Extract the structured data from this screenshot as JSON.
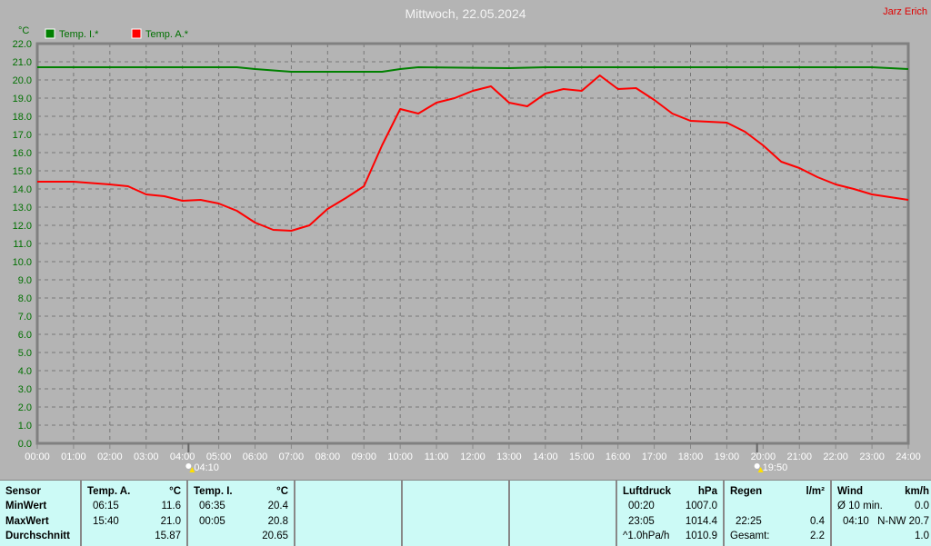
{
  "header": {
    "title": "Mittwoch, 22.05.2024",
    "author": "Jarz Erich"
  },
  "chart_data": {
    "type": "line",
    "title": "Mittwoch, 22.05.2024",
    "ylabel": "°C",
    "ylim": [
      0,
      22
    ],
    "yticks": [
      "0.0",
      "1.0",
      "2.0",
      "3.0",
      "4.0",
      "5.0",
      "6.0",
      "7.0",
      "8.0",
      "9.0",
      "10.0",
      "11.0",
      "12.0",
      "13.0",
      "14.0",
      "15.0",
      "16.0",
      "17.0",
      "18.0",
      "19.0",
      "20.0",
      "21.0",
      "22.0"
    ],
    "xticks": [
      "00:00",
      "01:00",
      "02:00",
      "03:00",
      "04:00",
      "05:00",
      "06:00",
      "07:00",
      "08:00",
      "09:00",
      "10:00",
      "11:00",
      "12:00",
      "13:00",
      "14:00",
      "15:00",
      "16:00",
      "17:00",
      "18:00",
      "19:00",
      "20:00",
      "21:00",
      "22:00",
      "23:00",
      "24:00"
    ],
    "grid": true,
    "legend_placement": "top-left",
    "annotations": [
      {
        "label": "04:10",
        "x": 4.167,
        "icon": "sunrise-icon"
      },
      {
        "label": "19:50",
        "x": 19.833,
        "icon": "sunset-icon"
      }
    ],
    "series": [
      {
        "name": "Temp. I.*",
        "color": "#008000",
        "x": [
          0,
          5.5,
          6,
          7,
          9.5,
          10,
          10.5,
          13,
          14,
          23,
          24
        ],
        "values": [
          20.7,
          20.7,
          20.6,
          20.45,
          20.45,
          20.6,
          20.7,
          20.65,
          20.7,
          20.7,
          20.6
        ]
      },
      {
        "name": "Temp. A.*",
        "color": "#ff0000",
        "x": [
          0,
          1,
          2,
          2.5,
          3,
          3.5,
          4,
          4.5,
          5,
          5.5,
          6,
          6.5,
          7,
          7.5,
          8,
          8.5,
          9,
          9.5,
          10,
          10.5,
          11,
          11.5,
          12,
          12.5,
          13,
          13.5,
          14,
          14.5,
          15,
          15.5,
          16,
          16.5,
          17,
          17.5,
          18,
          18.5,
          19,
          19.5,
          20,
          20.5,
          21,
          21.5,
          22,
          22.5,
          23,
          23.5,
          24
        ],
        "values": [
          14.4,
          14.4,
          14.25,
          14.15,
          13.7,
          13.6,
          13.35,
          13.4,
          13.2,
          12.8,
          12.15,
          11.75,
          11.7,
          12.0,
          12.9,
          13.5,
          14.15,
          16.4,
          18.4,
          18.15,
          18.75,
          19.0,
          19.4,
          19.65,
          18.75,
          18.55,
          19.25,
          19.5,
          19.4,
          20.25,
          19.5,
          19.55,
          18.9,
          18.15,
          17.75,
          17.7,
          17.65,
          17.15,
          16.4,
          15.5,
          15.15,
          14.65,
          14.25,
          14.0,
          13.7,
          13.55,
          13.4
        ]
      }
    ]
  },
  "table": {
    "labels": {
      "h": "Sensor",
      "min": "MinWert",
      "max": "MaxWert",
      "avg": "Durchschnitt"
    },
    "temp_a": {
      "h": "Temp. A.",
      "unit": "°C",
      "min_t": "06:15",
      "min_v": "11.6",
      "max_t": "15:40",
      "max_v": "21.0",
      "avg": "15.87"
    },
    "temp_i": {
      "h": "Temp. I.",
      "unit": "°C",
      "min_t": "06:35",
      "min_v": "20.4",
      "max_t": "00:05",
      "max_v": "20.8",
      "avg": "20.65"
    },
    "pressure": {
      "h": "Luftdruck",
      "unit": "hPa",
      "min_t": "00:20",
      "min_v": "1007.0",
      "max_t": "23:05",
      "max_v": "1014.4",
      "trend": "^1.0hPa/h",
      "avg": "1010.9"
    },
    "rain": {
      "h": "Regen",
      "unit": "l/m²",
      "max_t": "22:25",
      "max_v": "0.4",
      "total_l": "Gesamt:",
      "total": "2.2"
    },
    "wind": {
      "h": "Wind",
      "unit": "km/h",
      "avg_l": "Ø 10 min.",
      "avg": "0.0",
      "max_t": "04:10",
      "max_v": "N-NW 20.7",
      "last": "1.0"
    }
  }
}
